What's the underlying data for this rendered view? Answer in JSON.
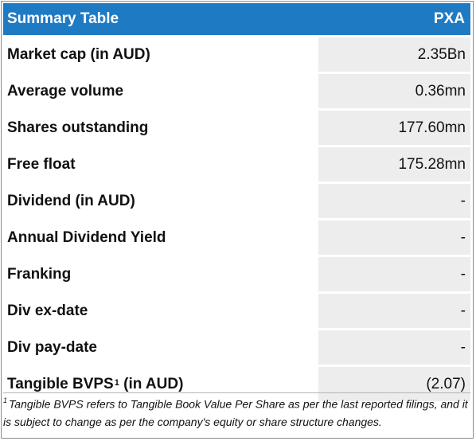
{
  "table": {
    "header_label": "Summary Table",
    "header_ticker": "PXA",
    "rows": [
      {
        "label": "Market cap (in AUD)",
        "value": "2.35Bn"
      },
      {
        "label": "Average volume",
        "value": "0.36mn"
      },
      {
        "label": "Shares outstanding",
        "value": "177.60mn"
      },
      {
        "label": "Free float",
        "value": "175.28mn"
      },
      {
        "label": "Dividend (in AUD)",
        "value": "-"
      },
      {
        "label": "Annual Dividend Yield",
        "value": "-"
      },
      {
        "label": "Franking",
        "value": "-"
      },
      {
        "label": "Div ex-date",
        "value": "-"
      },
      {
        "label": "Div pay-date",
        "value": "-"
      },
      {
        "label_main": "Tangible BVPS",
        "label_sup": "1",
        "label_suffix": " (in AUD)",
        "value": "(2.07)"
      }
    ]
  },
  "footnote": {
    "marker": "1",
    "text": "Tangible BVPS refers to Tangible Book Value Per Share as per the last reported filings, and it is subject to change as per the company's equity or share structure changes."
  }
}
